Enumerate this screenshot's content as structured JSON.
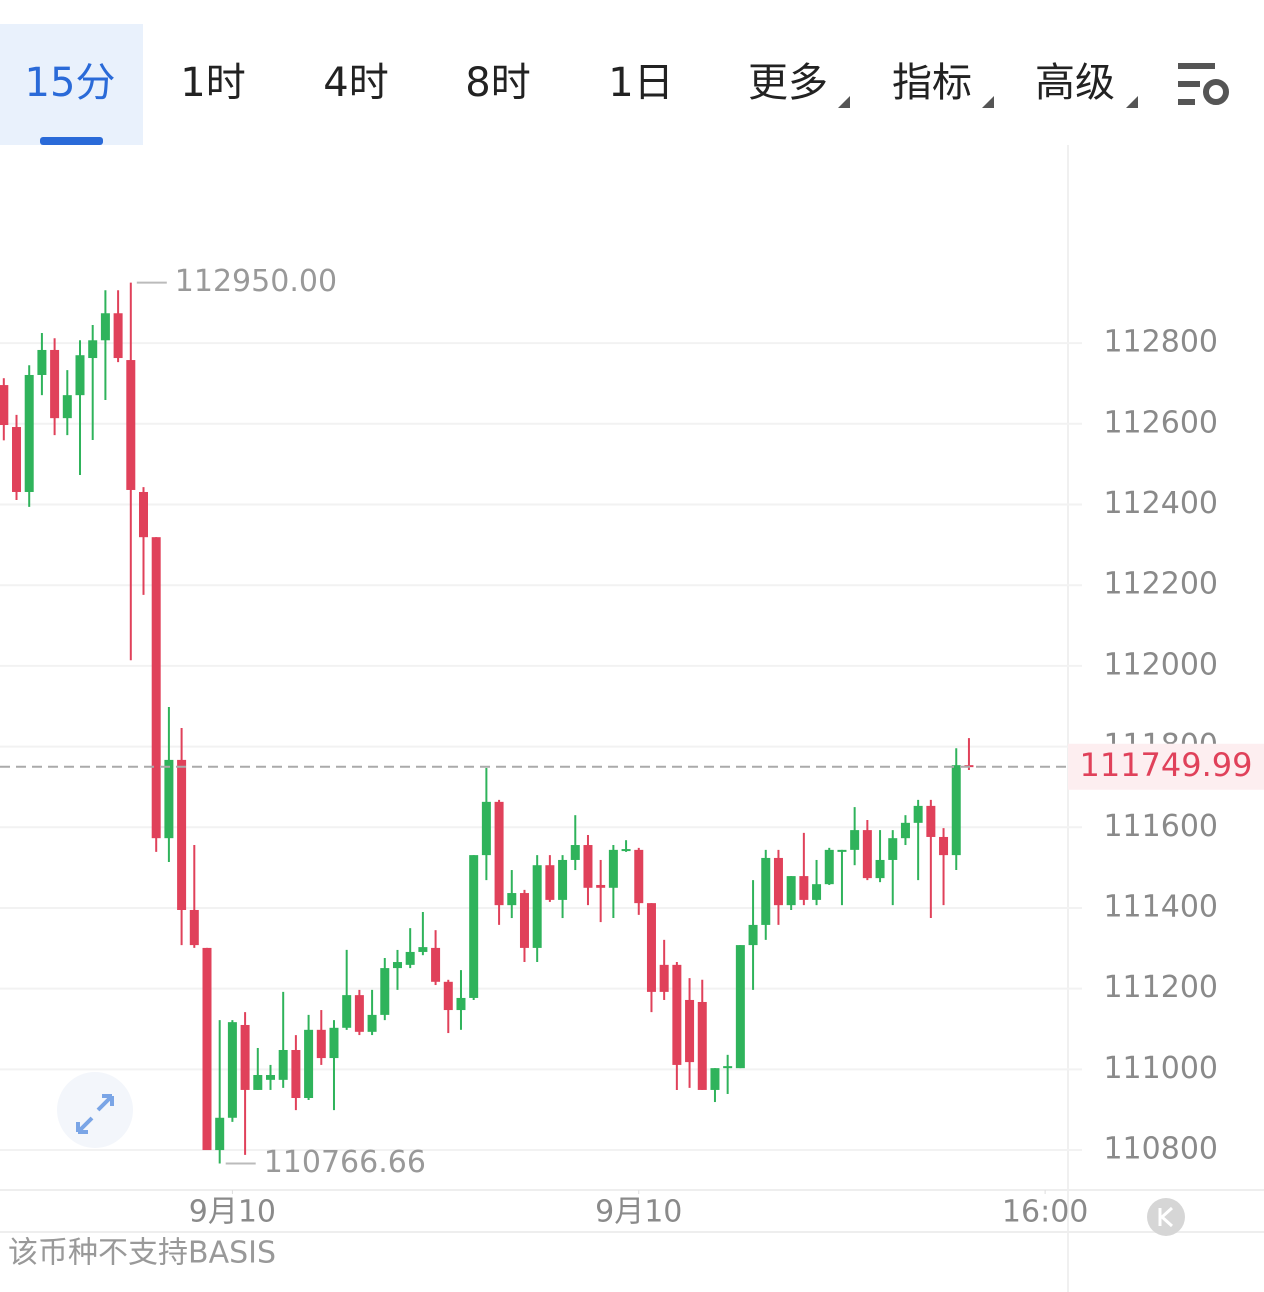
{
  "tabs": [
    "15分",
    "1时",
    "4时",
    "8时",
    "1日",
    "更多",
    "指标",
    "高级"
  ],
  "active_tab": 0,
  "footer": "该币种不支持BASIS",
  "chart_data": {
    "type": "candlestick",
    "up_color": "#2fb35b",
    "down_color": "#e0415a",
    "open": [
      112696,
      112592,
      112431,
      112721,
      112783,
      112614,
      112671,
      112763,
      112807,
      112874,
      112758,
      112431,
      112319,
      111573,
      111767,
      111395,
      111301,
      110800,
      110880,
      111110,
      110949,
      110974,
      110974,
      111048,
      110929,
      111098,
      111028,
      111103,
      111184,
      111093,
      111135,
      111251,
      111259,
      111291,
      111301,
      111217,
      111147,
      111177,
      111531,
      111663,
      111407,
      111437,
      111301,
      111506,
      111420,
      111519,
      111556,
      111457,
      111450,
      111541,
      111544,
      111412,
      111259,
      111259,
      111172,
      111167,
      110949,
      111003,
      111003,
      111308,
      111358,
      111524,
      111407,
      111479,
      111420,
      111459,
      111539,
      111544,
      111593,
      111474,
      111519,
      111573,
      111611,
      111653,
      111576,
      111531,
      111754
    ],
    "high": [
      112713,
      112622,
      112745,
      112825,
      112812,
      112733,
      112807,
      112845,
      112931,
      112931,
      112950,
      112443,
      112319,
      111898,
      111846,
      111556,
      111301,
      111122,
      111122,
      111142,
      111053,
      111011,
      111192,
      111085,
      111135,
      111147,
      111122,
      111296,
      111197,
      111197,
      111276,
      111296,
      111350,
      111390,
      111345,
      111222,
      111246,
      111531,
      111747,
      111668,
      111494,
      111445,
      111531,
      111531,
      111531,
      111630,
      111581,
      111519,
      111556,
      111568,
      111549,
      111412,
      111321,
      111266,
      111226,
      111222,
      111003,
      111036,
      111308,
      111469,
      111544,
      111544,
      111479,
      111586,
      111519,
      111549,
      111544,
      111650,
      111618,
      111593,
      111593,
      111630,
      111668,
      111668,
      111598,
      111796,
      111821
    ],
    "low": [
      112559,
      112411,
      112394,
      112671,
      112572,
      112572,
      112473,
      112560,
      112659,
      112753,
      112014,
      112176,
      111539,
      111514,
      111308,
      111301,
      110800,
      110766.66,
      110870,
      110788,
      110949,
      110949,
      110954,
      110899,
      110924,
      111011,
      110899,
      111098,
      111085,
      111085,
      111122,
      111197,
      111251,
      111283,
      111209,
      111090,
      111098,
      111172,
      111469,
      111358,
      111375,
      111266,
      111266,
      111415,
      111375,
      111494,
      111407,
      111365,
      111375,
      111539,
      111383,
      111142,
      111172,
      110949,
      110954,
      110949,
      110919,
      110939,
      111003,
      111197,
      111321,
      111358,
      111395,
      111407,
      111407,
      111457,
      111407,
      111506,
      111469,
      111464,
      111407,
      111556,
      111469,
      111375,
      111407,
      111494,
      111742
    ],
    "close": [
      112597,
      112431,
      112721,
      112783,
      112614,
      112671,
      112770,
      112807,
      112874,
      112763,
      112436,
      112319,
      111573,
      111767,
      111395,
      111308,
      110800,
      110880,
      111117,
      110949,
      110986,
      110986,
      111048,
      110929,
      111098,
      111028,
      111103,
      111184,
      111093,
      111135,
      111251,
      111266,
      111291,
      111303,
      111217,
      111147,
      111177,
      111531,
      111663,
      111407,
      111437,
      111301,
      111506,
      111420,
      111519,
      111556,
      111450,
      111450,
      111544,
      111546,
      111412,
      111192,
      111192,
      111011,
      111018,
      110949,
      111003,
      111008,
      111308,
      111358,
      111524,
      111407,
      111479,
      111420,
      111459,
      111544,
      111544,
      111593,
      111474,
      111519,
      111573,
      111611,
      111653,
      111576,
      111531,
      111754,
      111749.99
    ],
    "ylim": [
      110701,
      113291
    ],
    "yticks": [
      110800,
      111000,
      111200,
      111400,
      111600,
      111800,
      112000,
      112200,
      112400,
      112600,
      112800
    ],
    "xlim": [
      -0.3,
      83.8
    ],
    "xticks": [
      {
        "value": 18,
        "label": "9月10"
      },
      {
        "value": 50,
        "label": "9月10"
      },
      {
        "value": 82,
        "label": "16:00"
      }
    ],
    "annotations": [
      {
        "value": 112950,
        "label": "112950.00"
      },
      {
        "value": 110766.66,
        "label": "110766.66"
      }
    ],
    "last_price": {
      "value": 111749.99,
      "label": "111749.99"
    }
  }
}
